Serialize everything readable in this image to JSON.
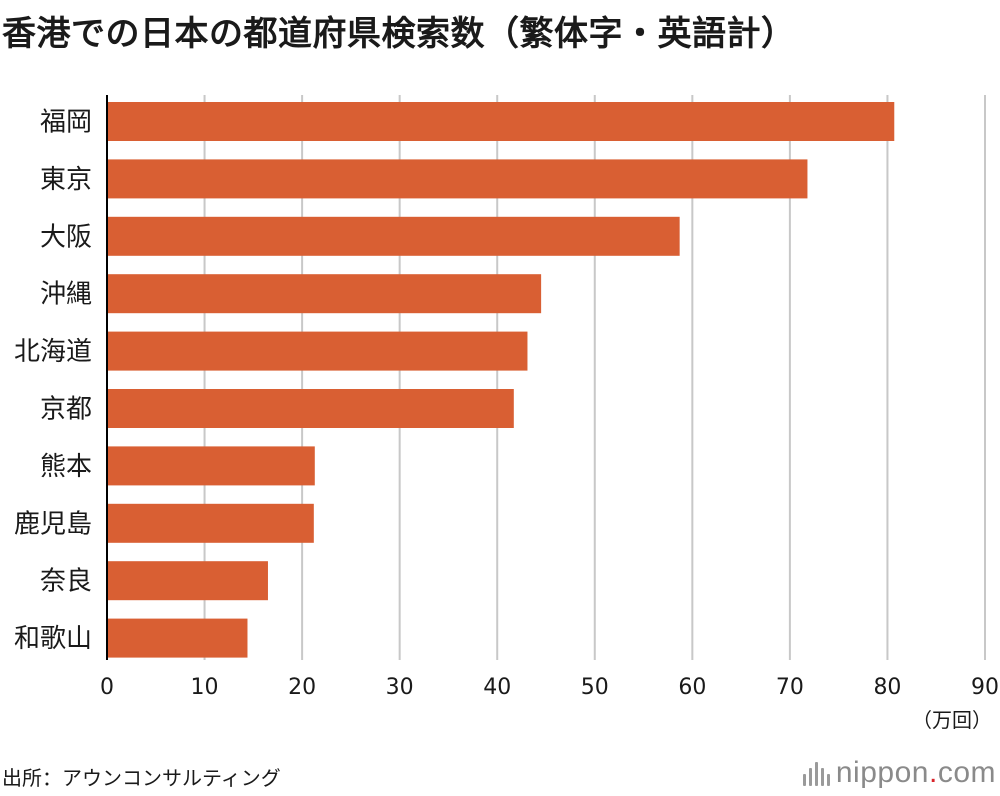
{
  "title": "香港での日本の都道府県検索数（繁体字・英語計）",
  "unit_label": "（万回）",
  "source": "出所：アウンコンサルティング",
  "logo": {
    "name": "nippon",
    "dot": ".",
    "suffix": "com",
    "icon": "nippon-bars-icon"
  },
  "colors": {
    "bar": "#d95f33",
    "grid": "#c8c8c8",
    "axis": "#000000",
    "logo_dot": "#d9242a"
  },
  "chart_data": {
    "type": "bar",
    "orientation": "horizontal",
    "title": "香港での日本の都道府県検索数（繁体字・英語計）",
    "xlabel": "（万回）",
    "ylabel": "",
    "categories": [
      "福岡",
      "東京",
      "大阪",
      "沖縄",
      "北海道",
      "京都",
      "熊本",
      "鹿児島",
      "奈良",
      "和歌山"
    ],
    "values": [
      80.7,
      71.8,
      58.7,
      44.5,
      43.1,
      41.7,
      21.3,
      21.2,
      16.5,
      14.4
    ],
    "xlim": [
      0,
      90
    ],
    "xticks": [
      "0",
      "10",
      "20",
      "30",
      "40",
      "50",
      "60",
      "70",
      "80",
      "90"
    ],
    "grid": true
  }
}
